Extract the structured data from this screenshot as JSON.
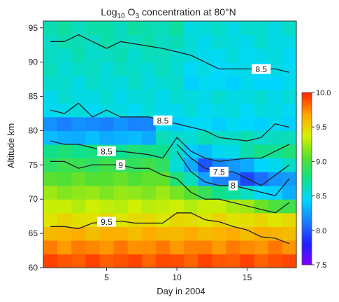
{
  "chart_data": {
    "type": "heatmap",
    "title": "Log",
    "title_sub": "10",
    "title_rest": " O",
    "title_sub2": "3",
    "title_tail": " concentration at 80°N",
    "xlabel": "Day in 2004",
    "ylabel": "Altitude km",
    "xlim": [
      0.5,
      18.5
    ],
    "ylim": [
      60,
      96
    ],
    "x_ticks": [
      5,
      10,
      15
    ],
    "y_ticks": [
      60,
      65,
      70,
      75,
      80,
      85,
      90,
      95
    ],
    "colorbar": {
      "min": 7.5,
      "max": 10.0,
      "ticks": [
        "10.0",
        "9.5",
        "9.0",
        "8.5",
        "8.0",
        "7.5"
      ]
    },
    "x_days": [
      1,
      2,
      3,
      4,
      5,
      6,
      7,
      8,
      9,
      10,
      11,
      12,
      13,
      14,
      15,
      16,
      17,
      18
    ],
    "altitudes": [
      60,
      62,
      64,
      66,
      68,
      70,
      72,
      74,
      76,
      78,
      80,
      82,
      84,
      86,
      88,
      90,
      92,
      94
    ],
    "contours": [
      {
        "level": "8.5",
        "label_day": 16,
        "points": [
          [
            1,
            93
          ],
          [
            2,
            93
          ],
          [
            3,
            94
          ],
          [
            5,
            92
          ],
          [
            6,
            93
          ],
          [
            9,
            92
          ],
          [
            11,
            91
          ],
          [
            12,
            90
          ],
          [
            13,
            89
          ],
          [
            15,
            89
          ],
          [
            17,
            89
          ],
          [
            18,
            88.5
          ]
        ]
      },
      {
        "level": "8.5",
        "label_day": 9,
        "points": [
          [
            1,
            83
          ],
          [
            2,
            82.5
          ],
          [
            3,
            84
          ],
          [
            4,
            82
          ],
          [
            5,
            83
          ],
          [
            6,
            82
          ],
          [
            8,
            82
          ],
          [
            10,
            81
          ],
          [
            12,
            80
          ],
          [
            13,
            79
          ],
          [
            15,
            78.5
          ],
          [
            16,
            79
          ],
          [
            17,
            81
          ],
          [
            18,
            80.5
          ]
        ]
      },
      {
        "level": "8.5",
        "label_day": 5,
        "points": [
          [
            1,
            78.5
          ],
          [
            2,
            78
          ],
          [
            3,
            78
          ],
          [
            4,
            77.5
          ],
          [
            5,
            77
          ],
          [
            6,
            77
          ],
          [
            8,
            76.5
          ],
          [
            9,
            76
          ],
          [
            10,
            79
          ],
          [
            11,
            77
          ],
          [
            12,
            76
          ],
          [
            13,
            75.5
          ],
          [
            15,
            76
          ],
          [
            16,
            76
          ],
          [
            17,
            77
          ],
          [
            18,
            78
          ]
        ]
      },
      {
        "level": "9",
        "label_day": 6,
        "points": [
          [
            1,
            75.5
          ],
          [
            2,
            75.5
          ],
          [
            3,
            74.5
          ],
          [
            4,
            75
          ],
          [
            5,
            75
          ],
          [
            6,
            75
          ],
          [
            7,
            74.5
          ],
          [
            8,
            74.5
          ],
          [
            9,
            73.5
          ],
          [
            10,
            73
          ],
          [
            11,
            71
          ],
          [
            12,
            70
          ],
          [
            13,
            70
          ],
          [
            14,
            69.5
          ],
          [
            15,
            69
          ],
          [
            16,
            68.5
          ],
          [
            17,
            68
          ],
          [
            18,
            69.5
          ]
        ]
      },
      {
        "level": "7.5",
        "label_day": 13,
        "points": [
          [
            10,
            78
          ],
          [
            11,
            76
          ],
          [
            12,
            74.5
          ],
          [
            13,
            74
          ],
          [
            14,
            74
          ],
          [
            15,
            73
          ],
          [
            16,
            72
          ],
          [
            17,
            73.5
          ],
          [
            18,
            75
          ]
        ]
      },
      {
        "level": "8",
        "label_day": 14,
        "points": [
          [
            10,
            77
          ],
          [
            11,
            74
          ],
          [
            12,
            72.5
          ],
          [
            13,
            72
          ],
          [
            14,
            72
          ],
          [
            15,
            71.5
          ],
          [
            16,
            71
          ],
          [
            17,
            70.5
          ],
          [
            18,
            73
          ]
        ]
      },
      {
        "level": "9.5",
        "label_day": 5,
        "points": [
          [
            1,
            66
          ],
          [
            2,
            66
          ],
          [
            3,
            65.7
          ],
          [
            4,
            66.5
          ],
          [
            5,
            66.7
          ],
          [
            6,
            66.8
          ],
          [
            7,
            66.5
          ],
          [
            8,
            66.5
          ],
          [
            9,
            66.5
          ],
          [
            10,
            68
          ],
          [
            11,
            68
          ],
          [
            12,
            67
          ],
          [
            13,
            66.7
          ],
          [
            14,
            66
          ],
          [
            15,
            65.5
          ],
          [
            16,
            64.5
          ],
          [
            17,
            64.3
          ],
          [
            18,
            63.5
          ]
        ]
      }
    ],
    "grid": false,
    "legend": "colorbar-right"
  }
}
